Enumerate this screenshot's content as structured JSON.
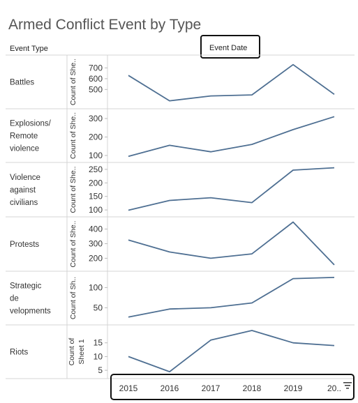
{
  "title": "Armed Conflict Event by Type",
  "headers": {
    "event_type": "Event Type",
    "event_date": "Event Date"
  },
  "icons": {
    "sort": "sort-descending-icon"
  },
  "chart_data": {
    "type": "line",
    "x": [
      "2015",
      "2016",
      "2017",
      "2018",
      "2019",
      "20.."
    ],
    "panels": [
      {
        "category": "Battles",
        "ylabel": "Count of She..",
        "yticks": [
          500,
          600,
          700
        ],
        "ylim": [
          360,
          780
        ],
        "values": [
          630,
          395,
          440,
          450,
          730,
          455
        ]
      },
      {
        "category": "Explosions/ Remote violence",
        "ylabel": "Count of She..",
        "yticks": [
          100,
          200,
          300
        ],
        "ylim": [
          85,
          330
        ],
        "values": [
          95,
          155,
          120,
          160,
          240,
          310
        ]
      },
      {
        "category": "Violence against civilians",
        "ylabel": "Count of She..",
        "yticks": [
          100,
          150,
          200,
          250
        ],
        "ylim": [
          90,
          260
        ],
        "values": [
          99,
          135,
          145,
          127,
          247,
          256
        ]
      },
      {
        "category": "Protests",
        "ylabel": "Count of She..",
        "yticks": [
          200,
          300,
          400
        ],
        "ylim": [
          140,
          455
        ],
        "values": [
          325,
          243,
          200,
          230,
          448,
          155
        ]
      },
      {
        "category": "Strategic de velopments",
        "ylabel": "Count of Sh..",
        "yticks": [
          50,
          100
        ],
        "ylim": [
          18,
          130
        ],
        "values": [
          27,
          47,
          50,
          62,
          122,
          125
        ]
      },
      {
        "category": "Riots",
        "ylabel": "Count of Sheet 1",
        "yticks": [
          5,
          10,
          15
        ],
        "ylim": [
          3.5,
          20
        ],
        "values": [
          10,
          4.5,
          16,
          19.5,
          15,
          14
        ]
      }
    ],
    "grid": false,
    "line_color": "#4e6f92"
  }
}
